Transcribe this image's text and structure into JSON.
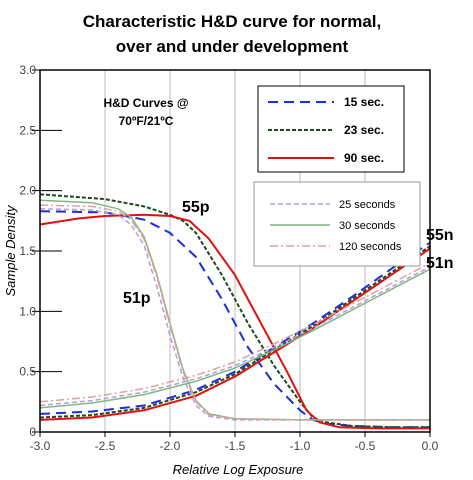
{
  "chart_data": {
    "type": "line",
    "title_line1": "Characteristic H&D curve for normal,",
    "title_line2": "over and under development",
    "xlabel": "Relative Log Exposure",
    "ylabel": "Sample Density",
    "xlim": [
      -3.0,
      0.0
    ],
    "ylim": [
      0.0,
      3.0
    ],
    "x_ticks": [
      "-3.0",
      "-2.5",
      "-2.0",
      "-1.5",
      "-1.0",
      "-0.5",
      "0.0"
    ],
    "y_ticks": [
      "0",
      "0.5",
      "1.0",
      "1.5",
      "2.0",
      "2.5",
      "3.0"
    ],
    "box_title_line1": "H&D Curves @",
    "box_title_line2": "70ºF/21ºC",
    "annotations": {
      "p55": "55p",
      "p51": "51p",
      "n55": "55n",
      "n51": "51n"
    },
    "legend1": [
      {
        "label": "15 sec.",
        "color": "#1a2ee0",
        "dash": "10,6"
      },
      {
        "label": "23 sec.",
        "color": "#1b4a1b",
        "dash": "4,2"
      },
      {
        "label": "90 sec.",
        "color": "#e01010",
        "dash": ""
      }
    ],
    "legend2": [
      {
        "label": "25 seconds",
        "color": "#b49be0",
        "dash": "5,3"
      },
      {
        "label": "30 seconds",
        "color": "#7fb87f",
        "dash": ""
      },
      {
        "label": "120 seconds",
        "color": "#e0a0a0",
        "dash": "8,3,2,3"
      }
    ],
    "series": [
      {
        "group": "55p",
        "legend": "15 sec.",
        "color": "#1a2ee0",
        "dash": "10,6",
        "width": 2,
        "x": [
          -3.0,
          -2.5,
          -2.2,
          -2.0,
          -1.8,
          -1.6,
          -1.4,
          -1.2,
          -1.0,
          -0.9,
          -0.8,
          -0.6,
          -0.3,
          0.0
        ],
        "y": [
          1.83,
          1.82,
          1.76,
          1.65,
          1.45,
          1.1,
          0.7,
          0.4,
          0.18,
          0.1,
          0.07,
          0.05,
          0.04,
          0.04
        ]
      },
      {
        "group": "55p",
        "legend": "23 sec.",
        "color": "#1b4a1b",
        "dash": "4,2",
        "width": 2,
        "x": [
          -3.0,
          -2.5,
          -2.2,
          -2.0,
          -1.9,
          -1.8,
          -1.6,
          -1.4,
          -1.2,
          -1.0,
          -0.9,
          -0.8,
          -0.6,
          -0.3,
          0.0
        ],
        "y": [
          1.97,
          1.93,
          1.87,
          1.8,
          1.75,
          1.65,
          1.3,
          0.9,
          0.55,
          0.25,
          0.12,
          0.08,
          0.05,
          0.04,
          0.04
        ]
      },
      {
        "group": "55p",
        "legend": "90 sec.",
        "color": "#e01010",
        "dash": "",
        "width": 2,
        "x": [
          -3.0,
          -2.7,
          -2.5,
          -2.2,
          -2.0,
          -1.85,
          -1.7,
          -1.5,
          -1.3,
          -1.1,
          -0.95,
          -0.85,
          -0.7,
          -0.4,
          0.0
        ],
        "y": [
          1.72,
          1.77,
          1.79,
          1.8,
          1.79,
          1.75,
          1.6,
          1.3,
          0.9,
          0.5,
          0.18,
          0.08,
          0.04,
          0.03,
          0.03
        ]
      },
      {
        "group": "55n",
        "legend": "15 sec.",
        "color": "#1a2ee0",
        "dash": "10,6",
        "width": 2,
        "x": [
          -3.0,
          -2.6,
          -2.2,
          -1.8,
          -1.5,
          -1.2,
          -0.9,
          -0.6,
          -0.3,
          0.0
        ],
        "y": [
          0.15,
          0.17,
          0.22,
          0.35,
          0.5,
          0.7,
          0.9,
          1.12,
          1.35,
          1.57
        ]
      },
      {
        "group": "55n",
        "legend": "23 sec.",
        "color": "#1b4a1b",
        "dash": "4,2",
        "width": 2,
        "x": [
          -3.0,
          -2.6,
          -2.2,
          -1.8,
          -1.5,
          -1.2,
          -0.9,
          -0.6,
          -0.3,
          0.0
        ],
        "y": [
          0.12,
          0.14,
          0.2,
          0.33,
          0.48,
          0.68,
          0.88,
          1.1,
          1.32,
          1.54
        ]
      },
      {
        "group": "55n",
        "legend": "90 sec.",
        "color": "#e01010",
        "dash": "",
        "width": 2,
        "x": [
          -3.0,
          -2.6,
          -2.2,
          -1.8,
          -1.5,
          -1.2,
          -0.9,
          -0.6,
          -0.3,
          0.0
        ],
        "y": [
          0.1,
          0.12,
          0.18,
          0.3,
          0.46,
          0.66,
          0.86,
          1.08,
          1.3,
          1.52
        ]
      },
      {
        "group": "51p",
        "legend": "25 seconds",
        "color": "#b49be0",
        "dash": "5,3",
        "width": 1.5,
        "x": [
          -3.0,
          -2.6,
          -2.4,
          -2.3,
          -2.2,
          -2.1,
          -2.0,
          -1.9,
          -1.8,
          -1.7,
          -1.5,
          -1.0,
          -0.5,
          0.0
        ],
        "y": [
          1.85,
          1.84,
          1.8,
          1.72,
          1.55,
          1.2,
          0.8,
          0.45,
          0.22,
          0.13,
          0.1,
          0.1,
          0.1,
          0.1
        ]
      },
      {
        "group": "51p",
        "legend": "30 seconds",
        "color": "#7fb87f",
        "dash": "",
        "width": 1.5,
        "x": [
          -3.0,
          -2.6,
          -2.4,
          -2.3,
          -2.2,
          -2.1,
          -2.0,
          -1.9,
          -1.8,
          -1.7,
          -1.5,
          -1.0,
          -0.5,
          0.0
        ],
        "y": [
          1.92,
          1.9,
          1.85,
          1.78,
          1.62,
          1.3,
          0.9,
          0.52,
          0.26,
          0.15,
          0.11,
          0.1,
          0.1,
          0.1
        ]
      },
      {
        "group": "51p",
        "legend": "120 seconds",
        "color": "#e0a0a0",
        "dash": "8,3,2,3",
        "width": 1.5,
        "x": [
          -3.0,
          -2.6,
          -2.4,
          -2.3,
          -2.2,
          -2.1,
          -2.0,
          -1.9,
          -1.8,
          -1.7,
          -1.5,
          -1.0,
          -0.5,
          0.0
        ],
        "y": [
          1.88,
          1.87,
          1.83,
          1.76,
          1.6,
          1.28,
          0.88,
          0.5,
          0.25,
          0.14,
          0.11,
          0.1,
          0.1,
          0.1
        ]
      },
      {
        "group": "51n",
        "legend": "25 seconds",
        "color": "#b49be0",
        "dash": "5,3",
        "width": 1.5,
        "x": [
          -3.0,
          -2.6,
          -2.2,
          -1.8,
          -1.5,
          -1.2,
          -0.9,
          -0.6,
          -0.3,
          0.0
        ],
        "y": [
          0.22,
          0.26,
          0.33,
          0.44,
          0.55,
          0.7,
          0.86,
          1.03,
          1.2,
          1.37
        ]
      },
      {
        "group": "51n",
        "legend": "30 seconds",
        "color": "#7fb87f",
        "dash": "",
        "width": 1.5,
        "x": [
          -3.0,
          -2.6,
          -2.2,
          -1.8,
          -1.5,
          -1.2,
          -0.9,
          -0.6,
          -0.3,
          0.0
        ],
        "y": [
          0.2,
          0.24,
          0.31,
          0.42,
          0.53,
          0.68,
          0.84,
          1.01,
          1.18,
          1.35
        ]
      },
      {
        "group": "51n",
        "legend": "120 seconds",
        "color": "#e0a0a0",
        "dash": "8,3,2,3",
        "width": 1.5,
        "x": [
          -3.0,
          -2.6,
          -2.2,
          -1.8,
          -1.5,
          -1.2,
          -0.9,
          -0.6,
          -0.3,
          0.0
        ],
        "y": [
          0.25,
          0.29,
          0.36,
          0.47,
          0.58,
          0.73,
          0.89,
          1.06,
          1.23,
          1.4
        ]
      }
    ]
  }
}
